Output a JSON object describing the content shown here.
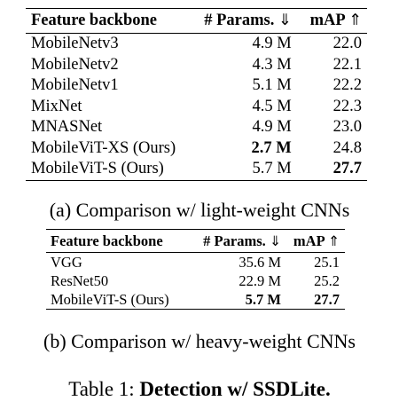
{
  "table_a": {
    "headers": {
      "backbone": "Feature backbone",
      "params": "# Params.",
      "params_arrow": "⇓",
      "map": "mAP",
      "map_arrow": "⇑"
    },
    "rows": [
      {
        "backbone": "MobileNetv3",
        "params": "4.9 M",
        "map": "22.0"
      },
      {
        "backbone": "MobileNetv2",
        "params": "4.3 M",
        "map": "22.1"
      },
      {
        "backbone": "MobileNetv1",
        "params": "5.1 M",
        "map": "22.2"
      },
      {
        "backbone": "MixNet",
        "params": "4.5 M",
        "map": "22.3"
      },
      {
        "backbone": "MNASNet",
        "params": "4.9 M",
        "map": "23.0"
      },
      {
        "backbone": "MobileViT-XS (Ours)",
        "params": "2.7 M",
        "map": "24.8"
      },
      {
        "backbone": "MobileViT-S (Ours)",
        "params": "5.7 M",
        "map": "27.7"
      }
    ],
    "caption": "(a) Comparison w/ light-weight CNNs"
  },
  "table_b": {
    "headers": {
      "backbone": "Feature backbone",
      "params": "# Params.",
      "params_arrow": "⇓",
      "map": "mAP",
      "map_arrow": "⇑"
    },
    "rows": [
      {
        "backbone": "VGG",
        "params": "35.6 M",
        "map": "25.1"
      },
      {
        "backbone": "ResNet50",
        "params": "22.9 M",
        "map": "25.2"
      },
      {
        "backbone": "MobileViT-S (Ours)",
        "params": "5.7 M",
        "map": "27.7"
      }
    ],
    "caption": "(b) Comparison w/ heavy-weight CNNs"
  },
  "table_caption": {
    "prefix": "Table 1: ",
    "title": "Detection w/ SSDLite."
  }
}
